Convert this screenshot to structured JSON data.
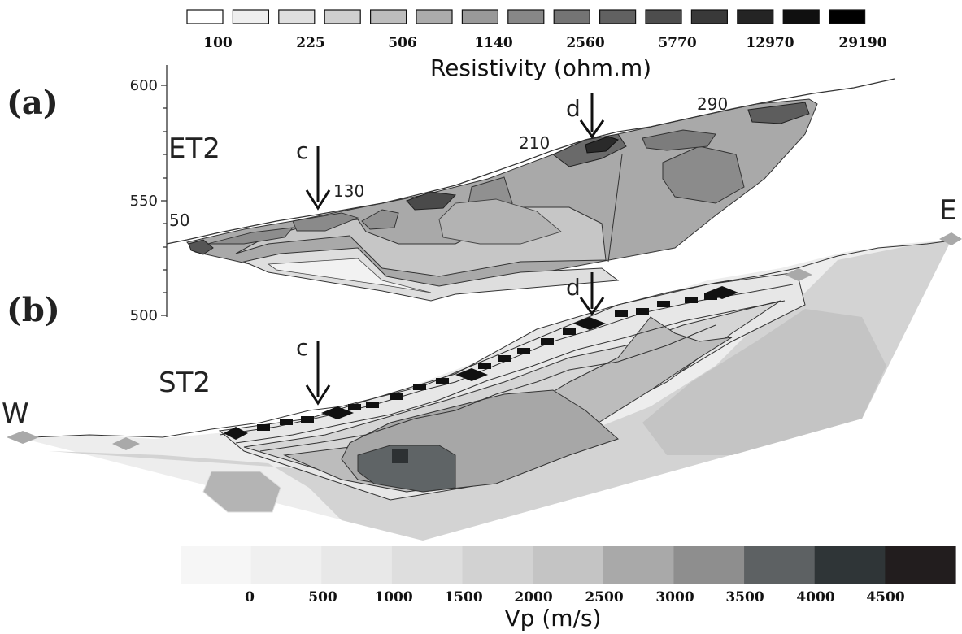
{
  "resistivity_legend": {
    "title": "Resistivity (ohm.m)",
    "values": [
      "100",
      "225",
      "506",
      "1140",
      "2560",
      "5770",
      "12970",
      "29190"
    ],
    "colors": [
      "#ffffff",
      "#efefef",
      "#dfdfdf",
      "#cfcfcf",
      "#bdbdbd",
      "#ababab",
      "#999999",
      "#878787",
      "#747474",
      "#616161",
      "#4d4d4d",
      "#393939",
      "#242424",
      "#101010",
      "#000000"
    ]
  },
  "velocity_legend": {
    "title": "Vp (m/s)",
    "values": [
      "0",
      "500",
      "1000",
      "1500",
      "2000",
      "2500",
      "3000",
      "3500",
      "4000",
      "4500"
    ],
    "colors": [
      "#f6f6f6",
      "#f0f0f0",
      "#e8e8e8",
      "#dedede",
      "#d2d2d2",
      "#c4c4c4",
      "#a9a9a9",
      "#8e8e8e",
      "#5d6163",
      "#2f3537",
      "#221d1e"
    ]
  },
  "panel_a": {
    "label": "(a)",
    "profile": "ET2",
    "axis_ticks": [
      "600",
      "550",
      "500"
    ],
    "point_labels": [
      "50",
      "130",
      "210",
      "290"
    ],
    "arrows": [
      "c",
      "d"
    ]
  },
  "panel_b": {
    "label": "(b)",
    "profile": "ST2",
    "arrows": [
      "c",
      "d"
    ],
    "ends": {
      "west": "W",
      "east": "E"
    }
  }
}
